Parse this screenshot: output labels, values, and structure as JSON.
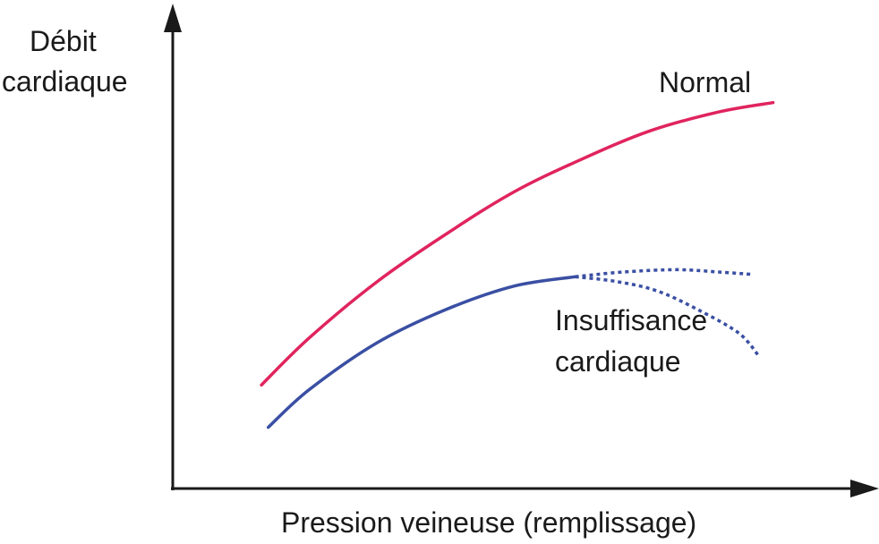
{
  "chart_data": {
    "type": "line",
    "xlabel": "Pression veineuse (remplissage)",
    "ylabel": [
      "Débit",
      "cardiaque"
    ],
    "colors": {
      "axis": "#1a1a1a",
      "normal": "#e0245e",
      "failure": "#3a4fa3"
    },
    "series": [
      {
        "name": "Normal",
        "style": "solid",
        "color": "#e0245e",
        "points": [
          [
            0.13,
            0.22
          ],
          [
            0.2,
            0.32
          ],
          [
            0.3,
            0.44
          ],
          [
            0.4,
            0.54
          ],
          [
            0.5,
            0.63
          ],
          [
            0.6,
            0.7
          ],
          [
            0.7,
            0.76
          ],
          [
            0.8,
            0.8
          ],
          [
            0.88,
            0.82
          ]
        ]
      },
      {
        "name": [
          "Insuffisance",
          "cardiaque"
        ],
        "style": "solid",
        "color": "#3a4fa3",
        "points": [
          [
            0.14,
            0.13
          ],
          [
            0.2,
            0.21
          ],
          [
            0.3,
            0.31
          ],
          [
            0.4,
            0.38
          ],
          [
            0.5,
            0.43
          ],
          [
            0.59,
            0.45
          ]
        ]
      },
      {
        "name": "",
        "style": "dotted",
        "color": "#3a4fa3",
        "points": [
          [
            0.59,
            0.45
          ],
          [
            0.66,
            0.46
          ],
          [
            0.74,
            0.465
          ],
          [
            0.8,
            0.46
          ],
          [
            0.85,
            0.455
          ]
        ]
      },
      {
        "name": "",
        "style": "dotted",
        "color": "#3a4fa3",
        "points": [
          [
            0.59,
            0.45
          ],
          [
            0.65,
            0.44
          ],
          [
            0.71,
            0.42
          ],
          [
            0.77,
            0.38
          ],
          [
            0.83,
            0.33
          ],
          [
            0.86,
            0.28
          ]
        ]
      }
    ],
    "xlim": [
      0,
      1
    ],
    "ylim": [
      0,
      1
    ],
    "grid": false
  }
}
